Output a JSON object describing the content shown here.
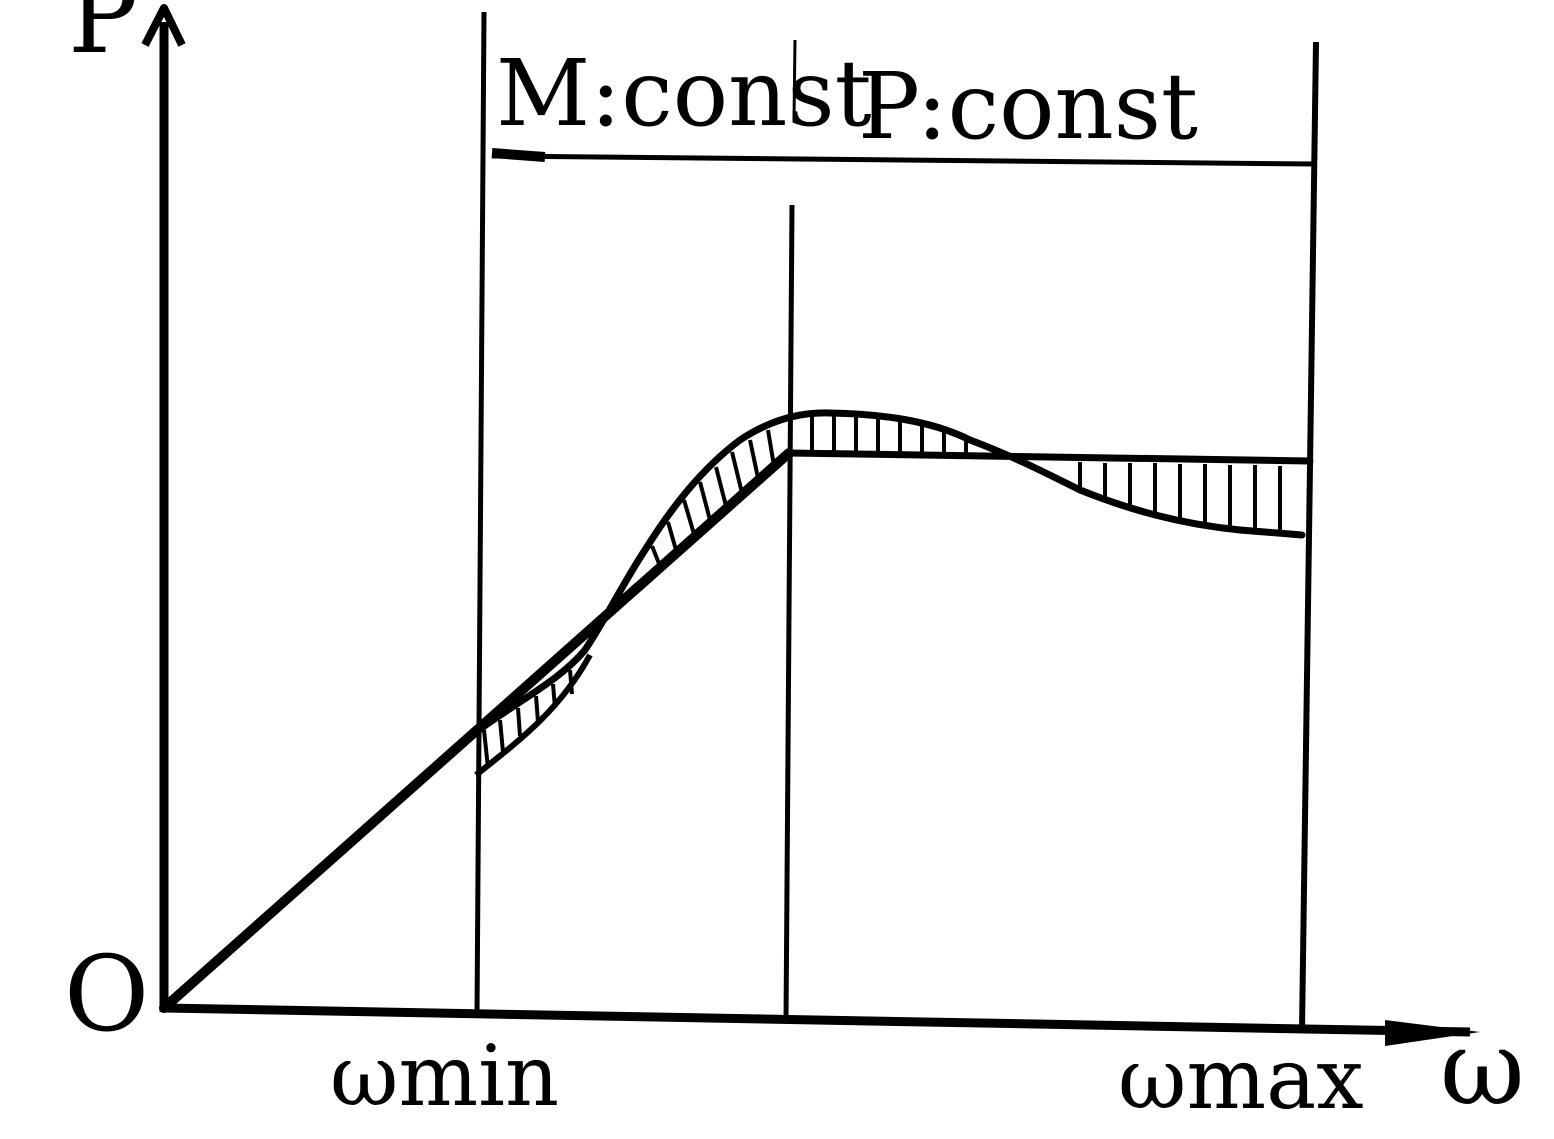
{
  "axes": {
    "y_label": "P",
    "x_label": "ω",
    "origin_label": "O"
  },
  "x_ticks": {
    "min_label": "ωmin",
    "max_label": "ωmax"
  },
  "regions": {
    "left": "M:const",
    "right": "P:const"
  },
  "colors": {
    "ink": "#000000",
    "paper": "#ffffff"
  }
}
